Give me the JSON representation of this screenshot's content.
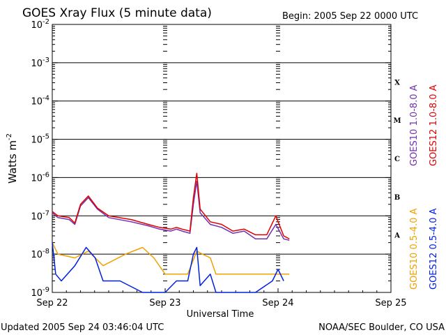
{
  "header": {
    "title": "GOES Xray Flux (5 minute data)",
    "begin": "Begin:  2005 Sep 22 0000 UTC"
  },
  "footer": {
    "updated": "Updated 2005 Sep 24 03:46:04 UTC",
    "credit": "NOAA/SEC Boulder, CO USA"
  },
  "chart_data": {
    "type": "line",
    "title": "GOES Xray Flux (5 minute data)",
    "xlabel": "Universal Time",
    "ylabel_base": "Watts m",
    "ylabel_exp": "-2",
    "yscale": "log",
    "ylim": [
      1e-09,
      0.01
    ],
    "xlim_days": [
      0,
      3
    ],
    "x_ticks": [
      "Sep 22",
      "Sep 23",
      "Sep 24",
      "Sep 25"
    ],
    "y_ticks": [
      {
        "base": "10",
        "exp": "-2"
      },
      {
        "base": "10",
        "exp": "-3"
      },
      {
        "base": "10",
        "exp": "-4"
      },
      {
        "base": "10",
        "exp": "-5"
      },
      {
        "base": "10",
        "exp": "-6"
      },
      {
        "base": "10",
        "exp": "-7"
      },
      {
        "base": "10",
        "exp": "-8"
      },
      {
        "base": "10",
        "exp": "-9"
      }
    ],
    "flare_classes": [
      {
        "label": "X",
        "decade": -3.5
      },
      {
        "label": "M",
        "decade": -4.5
      },
      {
        "label": "C",
        "decade": -5.5
      },
      {
        "label": "B",
        "decade": -6.5
      },
      {
        "label": "A",
        "decade": -7.5
      }
    ],
    "grid": true,
    "legend_position": "right",
    "series": [
      {
        "name": "GOES10 1.0-8.0 A",
        "color": "#7030b0",
        "points": [
          [
            0.0,
            1.2e-07
          ],
          [
            0.05,
            9e-08
          ],
          [
            0.15,
            8e-08
          ],
          [
            0.2,
            6e-08
          ],
          [
            0.25,
            1.8e-07
          ],
          [
            0.32,
            3e-07
          ],
          [
            0.4,
            1.5e-07
          ],
          [
            0.5,
            9e-08
          ],
          [
            0.7,
            7e-08
          ],
          [
            0.85,
            5.5e-08
          ],
          [
            0.95,
            4.5e-08
          ],
          [
            1.05,
            4e-08
          ],
          [
            1.1,
            4.5e-08
          ],
          [
            1.15,
            4e-08
          ],
          [
            1.22,
            3.5e-08
          ],
          [
            1.25,
            2e-07
          ],
          [
            1.28,
            8e-07
          ],
          [
            1.31,
            1.2e-07
          ],
          [
            1.4,
            6e-08
          ],
          [
            1.5,
            5e-08
          ],
          [
            1.6,
            3.5e-08
          ],
          [
            1.7,
            4e-08
          ],
          [
            1.8,
            2.5e-08
          ],
          [
            1.9,
            2.5e-08
          ],
          [
            1.98,
            6e-08
          ],
          [
            2.05,
            2.5e-08
          ],
          [
            2.1,
            2.3e-08
          ]
        ]
      },
      {
        "name": "GOES12 1.0-8.0 A",
        "color": "#e00000",
        "points": [
          [
            0.0,
            1.3e-07
          ],
          [
            0.05,
            1e-07
          ],
          [
            0.15,
            9e-08
          ],
          [
            0.2,
            6.5e-08
          ],
          [
            0.25,
            2e-07
          ],
          [
            0.32,
            3.3e-07
          ],
          [
            0.4,
            1.6e-07
          ],
          [
            0.5,
            1e-07
          ],
          [
            0.7,
            8e-08
          ],
          [
            0.85,
            6e-08
          ],
          [
            0.95,
            5e-08
          ],
          [
            1.05,
            4.5e-08
          ],
          [
            1.1,
            5e-08
          ],
          [
            1.15,
            4.5e-08
          ],
          [
            1.22,
            4e-08
          ],
          [
            1.25,
            3e-07
          ],
          [
            1.28,
            1.3e-06
          ],
          [
            1.31,
            1.5e-07
          ],
          [
            1.4,
            7e-08
          ],
          [
            1.5,
            6e-08
          ],
          [
            1.6,
            4e-08
          ],
          [
            1.7,
            4.5e-08
          ],
          [
            1.8,
            3.2e-08
          ],
          [
            1.9,
            3.2e-08
          ],
          [
            1.98,
            1e-07
          ],
          [
            2.05,
            3e-08
          ],
          [
            2.1,
            2.5e-08
          ]
        ]
      },
      {
        "name": "GOES10 0.5-4.0 A",
        "color": "#f0a000",
        "points": [
          [
            0.0,
            2e-08
          ],
          [
            0.05,
            1e-08
          ],
          [
            0.2,
            8e-09
          ],
          [
            0.32,
            1.2e-08
          ],
          [
            0.45,
            5e-09
          ],
          [
            0.65,
            1e-08
          ],
          [
            0.8,
            1.5e-08
          ],
          [
            0.9,
            8e-09
          ],
          [
            1.0,
            3e-09
          ],
          [
            1.2,
            3e-09
          ],
          [
            1.28,
            1.2e-08
          ],
          [
            1.33,
            1e-08
          ],
          [
            1.4,
            8e-09
          ],
          [
            1.45,
            3e-09
          ],
          [
            1.6,
            3e-09
          ],
          [
            1.8,
            3e-09
          ],
          [
            1.95,
            3e-09
          ],
          [
            2.1,
            3e-09
          ]
        ]
      },
      {
        "name": "GOES12 0.5-4.0 A",
        "color": "#0020e0",
        "points": [
          [
            0.0,
            2e-08
          ],
          [
            0.03,
            3e-09
          ],
          [
            0.08,
            2e-09
          ],
          [
            0.2,
            5e-09
          ],
          [
            0.3,
            1.5e-08
          ],
          [
            0.38,
            8e-09
          ],
          [
            0.45,
            2e-09
          ],
          [
            0.6,
            2e-09
          ],
          [
            0.8,
            1e-09
          ],
          [
            1.0,
            1e-09
          ],
          [
            1.1,
            2e-09
          ],
          [
            1.2,
            2e-09
          ],
          [
            1.25,
            1e-08
          ],
          [
            1.28,
            1.5e-08
          ],
          [
            1.31,
            1.5e-09
          ],
          [
            1.4,
            3e-09
          ],
          [
            1.45,
            1e-09
          ],
          [
            1.6,
            1e-09
          ],
          [
            1.8,
            1e-09
          ],
          [
            1.95,
            2e-09
          ],
          [
            2.0,
            4e-09
          ],
          [
            2.05,
            2e-09
          ]
        ]
      }
    ]
  }
}
